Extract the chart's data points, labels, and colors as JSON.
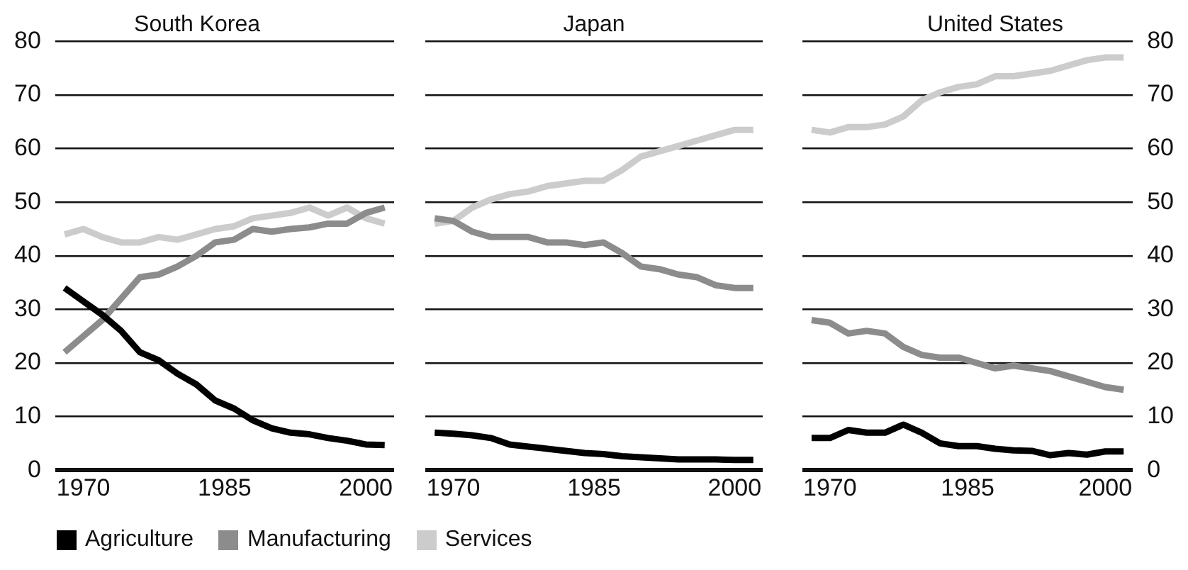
{
  "chart_data": [
    {
      "type": "line",
      "title": "South Korea",
      "x": [
        1968,
        1970,
        1972,
        1974,
        1976,
        1978,
        1980,
        1982,
        1984,
        1986,
        1988,
        1990,
        1992,
        1994,
        1996,
        1998,
        2000,
        2002
      ],
      "xlim": [
        1967,
        2003
      ],
      "xticks": [
        1970,
        1985,
        2000
      ],
      "ylim": [
        0,
        80
      ],
      "yticks": [
        0,
        10,
        20,
        30,
        40,
        50,
        60,
        70,
        80
      ],
      "grid": "y",
      "legend": "bottom",
      "series": [
        {
          "name": "Agriculture",
          "color": "#000000",
          "values": [
            34,
            31.5,
            29,
            26,
            22,
            20.5,
            18,
            16,
            13,
            11.5,
            9.3,
            7.8,
            7,
            6.7,
            6,
            5.5,
            4.8,
            4.7
          ]
        },
        {
          "name": "Manufacturing",
          "color": "#8c8c8c",
          "values": [
            22,
            25,
            28,
            32,
            36,
            36.5,
            38,
            40,
            42.5,
            43,
            45,
            44.5,
            45,
            45.3,
            46,
            46,
            48,
            49
          ]
        },
        {
          "name": "Services",
          "color": "#cccccc",
          "values": [
            44,
            45,
            43.5,
            42.5,
            42.5,
            43.5,
            43,
            44,
            45,
            45.5,
            47,
            47.5,
            48,
            49,
            47.5,
            49,
            47,
            46
          ]
        }
      ]
    },
    {
      "type": "line",
      "title": "Japan",
      "x": [
        1968,
        1970,
        1972,
        1974,
        1976,
        1978,
        1980,
        1982,
        1984,
        1986,
        1988,
        1990,
        1992,
        1994,
        1996,
        1998,
        2000,
        2002
      ],
      "xlim": [
        1967,
        2003
      ],
      "xticks": [
        1970,
        1985,
        2000
      ],
      "ylim": [
        0,
        80
      ],
      "yticks": [
        0,
        10,
        20,
        30,
        40,
        50,
        60,
        70,
        80
      ],
      "grid": "y",
      "tick_labels": "x",
      "series": [
        {
          "color": "#000000",
          "values": [
            7,
            6.8,
            6.5,
            6,
            4.8,
            4.4,
            4,
            3.6,
            3.2,
            3,
            2.6,
            2.4,
            2.2,
            2,
            2,
            2,
            1.9,
            1.9
          ]
        },
        {
          "color": "#8c8c8c",
          "values": [
            47,
            46.5,
            44.5,
            43.5,
            43.5,
            43.5,
            42.5,
            42.5,
            42,
            42.5,
            40.5,
            38,
            37.5,
            36.5,
            36,
            34.5,
            34,
            34
          ]
        },
        {
          "color": "#cccccc",
          "values": [
            46,
            46.5,
            49,
            50.5,
            51.5,
            52,
            53,
            53.5,
            54,
            54,
            56,
            58.5,
            59.5,
            60.5,
            61.5,
            62.5,
            63.5,
            63.5
          ]
        }
      ]
    },
    {
      "type": "line",
      "title": "United States",
      "x": [
        1968,
        1970,
        1972,
        1974,
        1976,
        1978,
        1980,
        1982,
        1984,
        1986,
        1988,
        1990,
        1992,
        1994,
        1996,
        1998,
        2000,
        2002
      ],
      "xlim": [
        1967,
        2003
      ],
      "xticks": [
        1970,
        1985,
        2000
      ],
      "ylim": [
        0,
        80
      ],
      "yticks": [
        0,
        10,
        20,
        30,
        40,
        50,
        60,
        70,
        80
      ],
      "grid": "y",
      "series": [
        {
          "color": "#000000",
          "values": [
            6,
            6,
            7.5,
            7,
            7,
            8.5,
            7,
            5,
            4.5,
            4.5,
            4,
            3.7,
            3.6,
            2.8,
            3.2,
            2.9,
            3.5,
            3.5
          ]
        },
        {
          "color": "#8c8c8c",
          "values": [
            28,
            27.5,
            25.5,
            26,
            25.5,
            23,
            21.5,
            21,
            21,
            20,
            19,
            19.5,
            19,
            18.5,
            17.5,
            16.5,
            15.5,
            15
          ]
        },
        {
          "color": "#cccccc",
          "values": [
            63.5,
            63,
            64,
            64,
            64.5,
            66,
            69,
            70.5,
            71.5,
            72,
            73.5,
            73.5,
            74,
            74.5,
            75.5,
            76.5,
            77,
            77
          ]
        }
      ]
    }
  ]
}
